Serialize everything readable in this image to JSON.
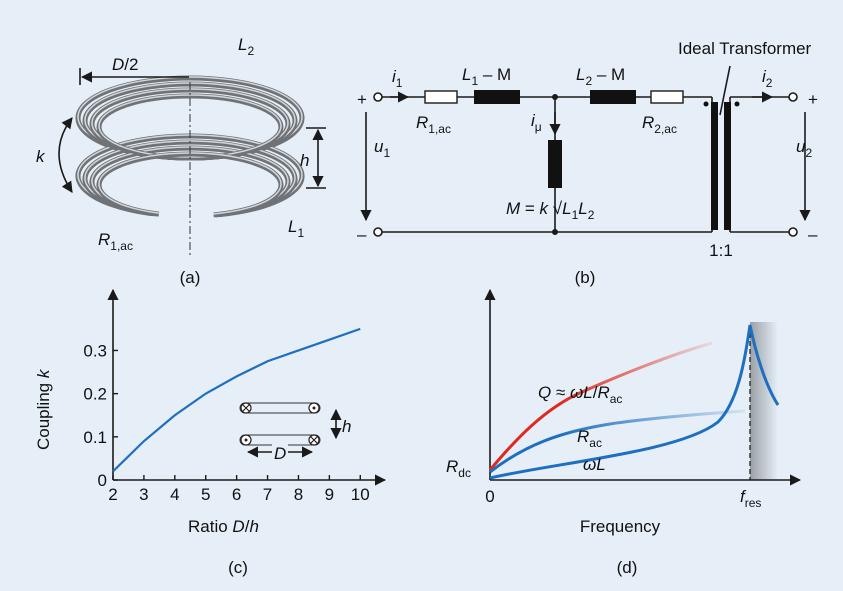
{
  "panel_a": {
    "label": "(a)",
    "half_diameter": [
      {
        "i": "D"
      },
      {
        "t": "/2"
      }
    ],
    "coil_top": [
      {
        "i": "L"
      },
      {
        "s": "2"
      }
    ],
    "coupling": [
      {
        "i": "k"
      }
    ],
    "spacing": [
      {
        "i": "h"
      }
    ],
    "resistance": [
      {
        "i": "R"
      },
      {
        "s": "1,ac"
      }
    ],
    "coil_bottom": [
      {
        "i": "L"
      },
      {
        "s": "1"
      }
    ]
  },
  "panel_b": {
    "label": "(b)",
    "transformer_title": "Ideal Transformer",
    "ratio": "1:1",
    "plus_in": "+",
    "minus_in": "–",
    "plus_out": "+",
    "minus_out": "–",
    "current_in": [
      {
        "i": "i"
      },
      {
        "s": "1"
      }
    ],
    "current_out": [
      {
        "i": "i"
      },
      {
        "s": "2"
      }
    ],
    "voltage_in": [
      {
        "i": "u"
      },
      {
        "s": "1"
      }
    ],
    "voltage_out": [
      {
        "i": "u"
      },
      {
        "s": "2"
      }
    ],
    "leak_1": [
      {
        "i": "L"
      },
      {
        "s": "1"
      },
      {
        "t": " – M"
      }
    ],
    "leak_2": [
      {
        "i": "L"
      },
      {
        "s": "2"
      },
      {
        "t": " – M"
      }
    ],
    "r1": [
      {
        "i": "R"
      },
      {
        "s": "1,ac"
      }
    ],
    "r2": [
      {
        "i": "R"
      },
      {
        "s": "2,ac"
      }
    ],
    "magnetizing_current": [
      {
        "i": "i"
      },
      {
        "s": "μ"
      }
    ],
    "magnetizing_inductance": [
      {
        "i": "M"
      },
      {
        "t": " = "
      },
      {
        "i": "k"
      },
      {
        "t": " √"
      },
      {
        "i": "L"
      },
      {
        "s": "1"
      },
      {
        "i": "L"
      },
      {
        "s": "2"
      }
    ]
  },
  "chart_data": {
    "type": "line",
    "label": "(c)",
    "x_label": [
      {
        "t": "Ratio "
      },
      {
        "i": "D"
      },
      {
        "t": "/"
      },
      {
        "i": "h"
      }
    ],
    "y_label": [
      {
        "t": "Coupling "
      },
      {
        "i": "k"
      }
    ],
    "x": [
      2,
      3,
      4,
      5,
      6,
      7,
      8,
      9,
      10
    ],
    "values": [
      0.02,
      0.09,
      0.15,
      0.2,
      0.24,
      0.275,
      0.3,
      0.325,
      0.35
    ],
    "color": "#1f6fc0",
    "xlim": [
      2,
      10.8
    ],
    "ylim": [
      0,
      0.44
    ],
    "xticks": [
      2,
      3,
      4,
      5,
      6,
      7,
      8,
      9,
      10
    ],
    "yticks": [
      0,
      0.1,
      0.2,
      0.3
    ],
    "inset_d": [
      {
        "i": "D"
      }
    ],
    "inset_h": [
      {
        "i": "h"
      }
    ]
  },
  "panel_d": {
    "label": "(d)",
    "x_label": "Frequency",
    "origin": "0",
    "quality": [
      {
        "i": "Q"
      },
      {
        "t": " ≈ "
      },
      {
        "i": "ωL"
      },
      {
        "t": "/"
      },
      {
        "i": "R"
      },
      {
        "s": "ac"
      }
    ],
    "rac": [
      {
        "i": "R"
      },
      {
        "s": "ac"
      }
    ],
    "wl": [
      {
        "i": "ωL"
      }
    ],
    "rdc": [
      {
        "i": "R"
      },
      {
        "s": "dc"
      }
    ],
    "fres": [
      {
        "i": "f"
      },
      {
        "s": "res"
      }
    ]
  }
}
